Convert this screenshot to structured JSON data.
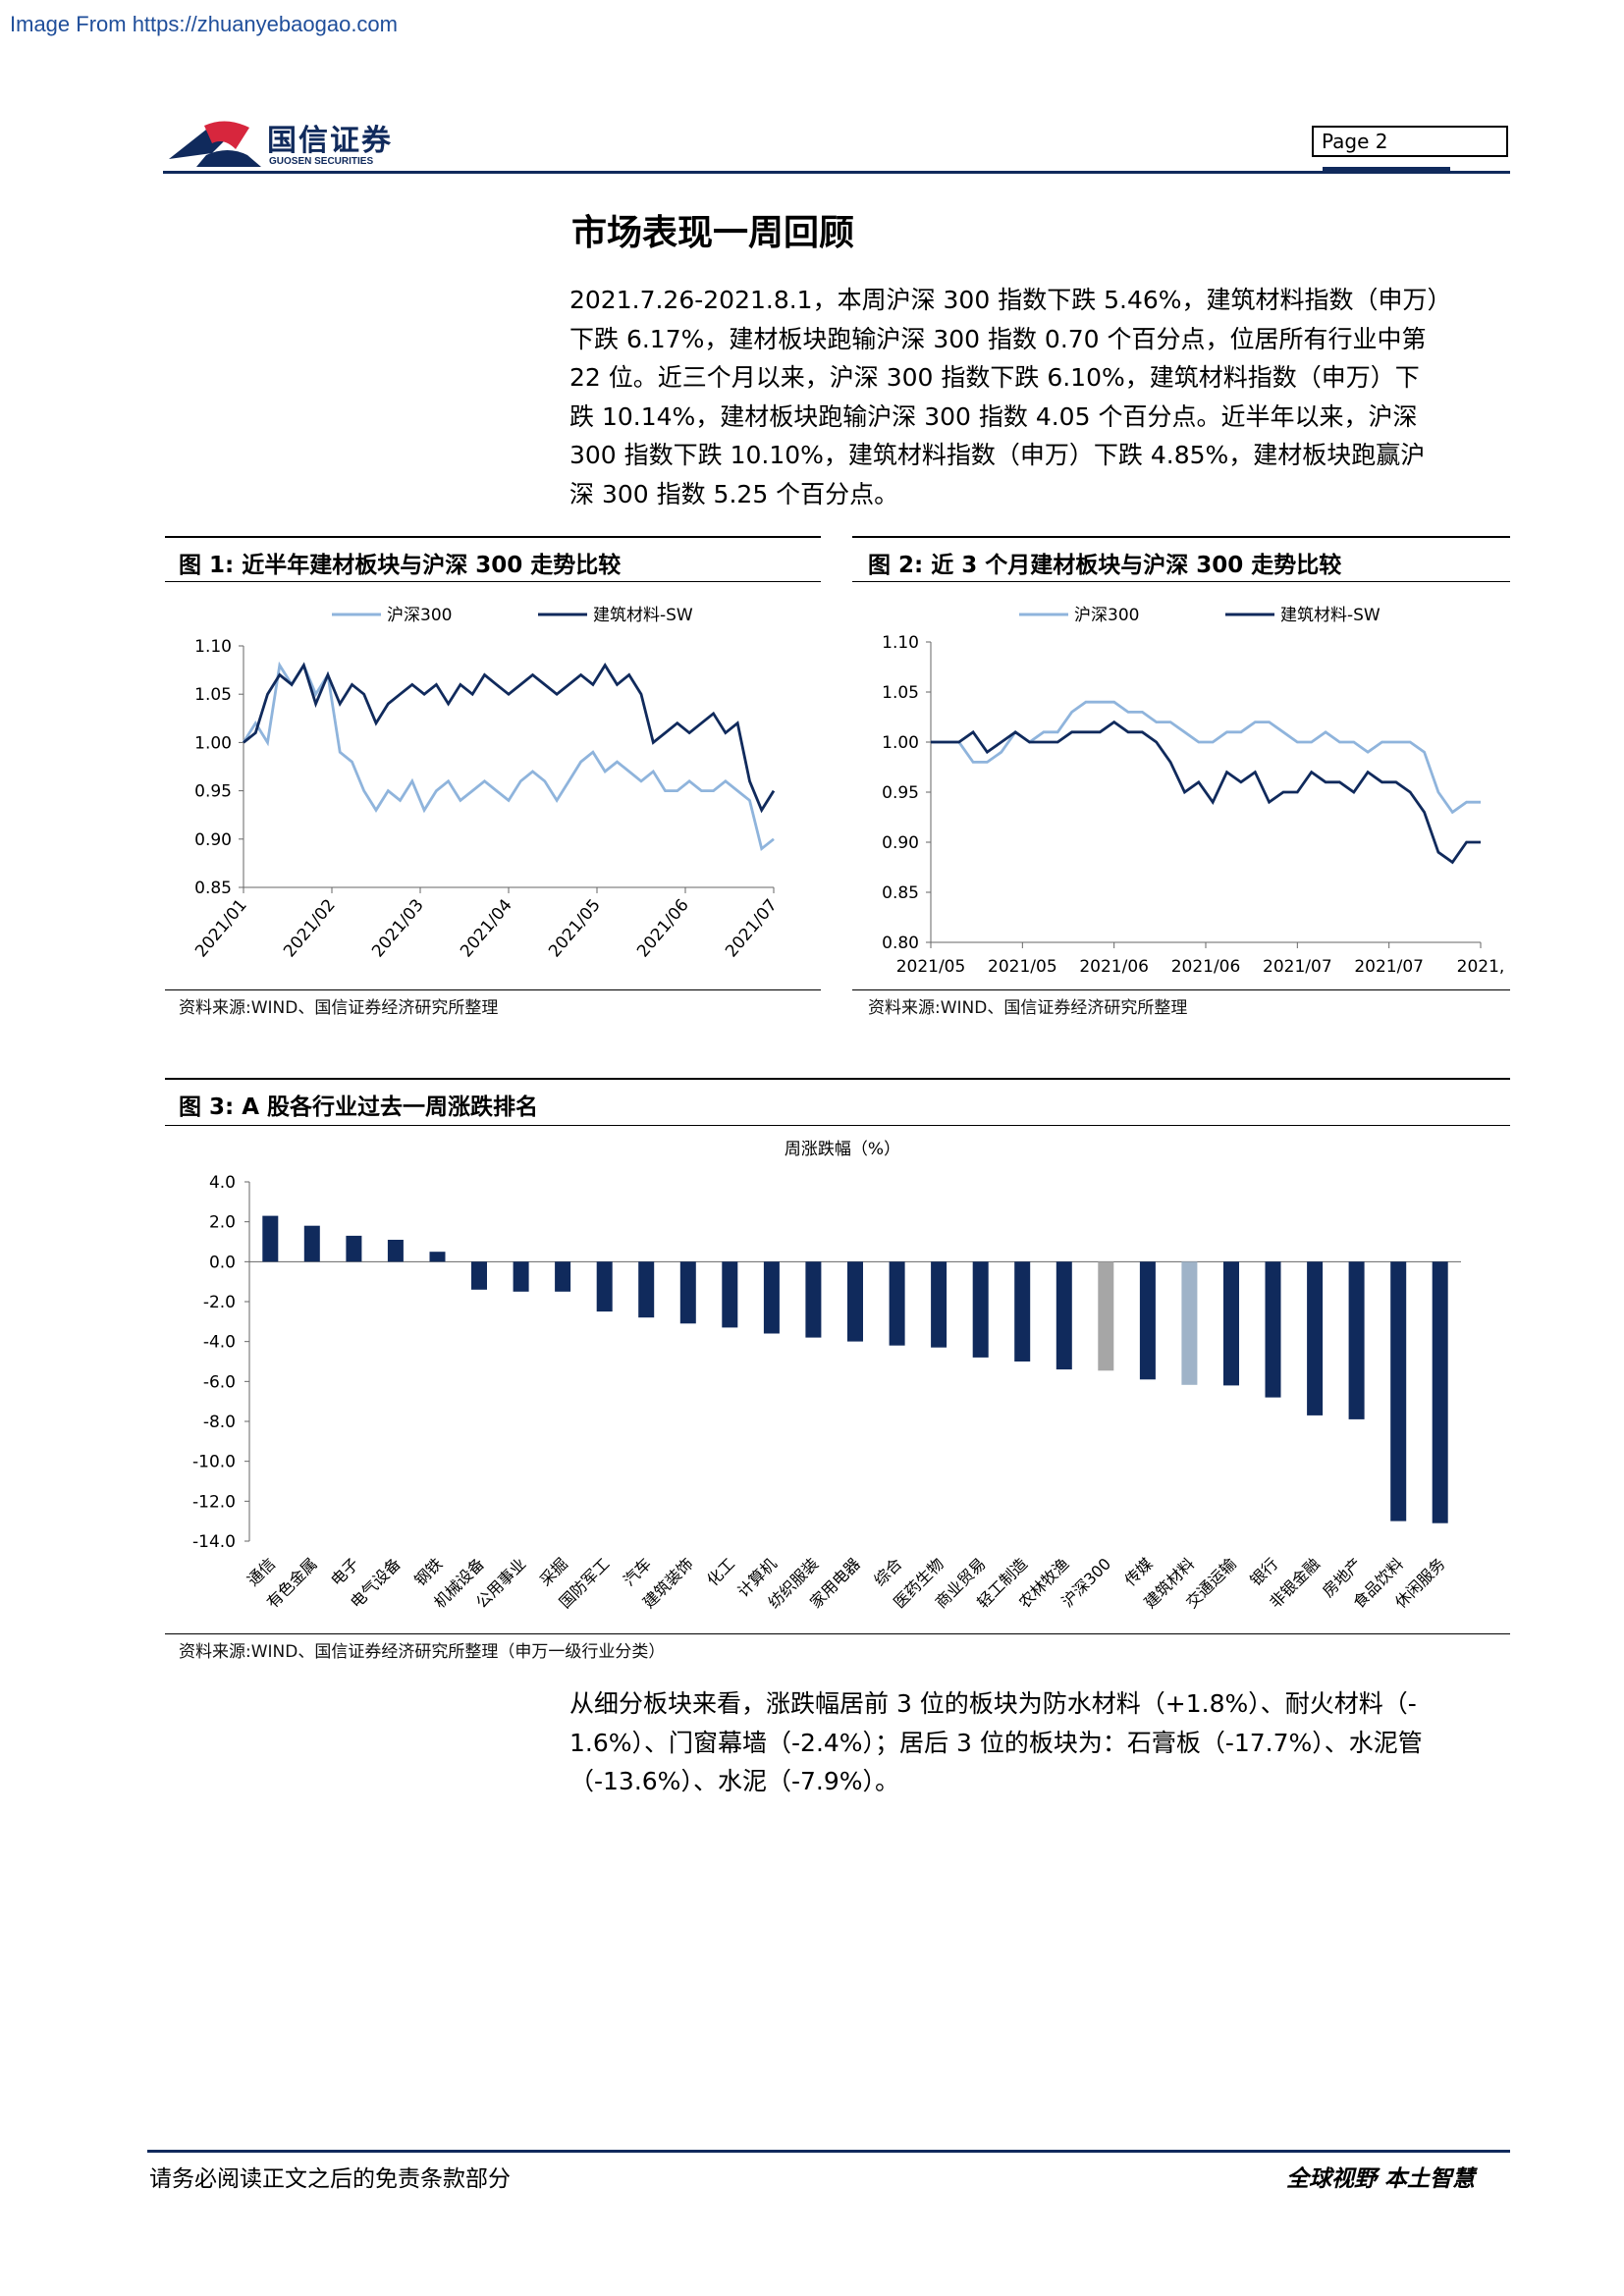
{
  "header": {
    "source_url": "Image From https://zhuanyebaogao.com",
    "logo_cn": "国信证券",
    "logo_en": "GUOSEN SECURITIES",
    "page_label": "Page 2"
  },
  "section_title": "市场表现一周回顾",
  "intro_lines": [
    "2021.7.26-2021.8.1，本周沪深 300 指数下跌 5.46%，建筑材料指数（申万）",
    "下跌 6.17%，建材板块跑输沪深 300 指数 0.70 个百分点，位居所有行业中第",
    "22 位。近三个月以来，沪深 300 指数下跌 6.10%，建筑材料指数（申万）下",
    "跌 10.14%，建材板块跑输沪深 300 指数 4.05 个百分点。近半年以来，沪深",
    "300 指数下跌 10.10%，建筑材料指数（申万）下跌 4.85%，建材板块跑赢沪",
    "深 300 指数 5.25 个百分点。"
  ],
  "figures": {
    "fig1": {
      "title": "图 1:  近半年建材板块与沪深 300 走势比较",
      "source": "资料来源:WIND、国信证券经济研究所整理"
    },
    "fig2": {
      "title": "图 2:  近 3 个月建材板块与沪深 300 走势比较",
      "source": "资料来源:WIND、国信证券经济研究所整理"
    },
    "fig3": {
      "title": "图 3:  A 股各行业过去一周涨跌排名",
      "source": "资料来源:WIND、国信证券经济研究所整理（申万一级行业分类）"
    }
  },
  "outro_lines": [
    "从细分板块来看，涨跌幅居前 3 位的板块为防水材料（+1.8%）、耐火材料（-",
    "1.6%）、门窗幕墙（-2.4%）；居后 3 位的板块为：石膏板（-17.7%）、水泥管",
    "（-13.6%）、水泥（-7.9%）。"
  ],
  "footer": {
    "left": "请务必阅读正文之后的免责条款部分",
    "right": "全球视野  本土智慧"
  },
  "colors": {
    "dark_navy": "#102a5c",
    "light_blue": "#8fb4dc",
    "gray_bar": "#a6a6a6",
    "light_steel_bar": "#9fb3c8"
  },
  "chart_data": [
    {
      "type": "line",
      "legend": [
        "沪深300",
        "建筑材料-SW"
      ],
      "x_ticks": [
        "2021/01",
        "2021/02",
        "2021/03",
        "2021/04",
        "2021/05",
        "2021/06",
        "2021/07"
      ],
      "ylim": [
        0.85,
        1.1
      ],
      "y_ticks": [
        "1.10",
        "1.05",
        "1.00",
        "0.95",
        "0.90",
        "0.85"
      ],
      "series": [
        {
          "name": "沪深300",
          "color": "#8fb4dc",
          "values": [
            1.0,
            1.02,
            1.0,
            1.08,
            1.06,
            1.08,
            1.05,
            1.07,
            0.99,
            0.98,
            0.95,
            0.93,
            0.95,
            0.94,
            0.96,
            0.93,
            0.95,
            0.96,
            0.94,
            0.95,
            0.96,
            0.95,
            0.94,
            0.96,
            0.97,
            0.96,
            0.94,
            0.96,
            0.98,
            0.99,
            0.97,
            0.98,
            0.97,
            0.96,
            0.97,
            0.95,
            0.95,
            0.96,
            0.95,
            0.95,
            0.96,
            0.95,
            0.94,
            0.89,
            0.9
          ]
        },
        {
          "name": "建筑材料-SW",
          "color": "#102a5c",
          "values": [
            1.0,
            1.01,
            1.05,
            1.07,
            1.06,
            1.08,
            1.04,
            1.07,
            1.04,
            1.06,
            1.05,
            1.02,
            1.04,
            1.05,
            1.06,
            1.05,
            1.06,
            1.04,
            1.06,
            1.05,
            1.07,
            1.06,
            1.05,
            1.06,
            1.07,
            1.06,
            1.05,
            1.06,
            1.07,
            1.06,
            1.08,
            1.06,
            1.07,
            1.05,
            1.0,
            1.01,
            1.02,
            1.01,
            1.02,
            1.03,
            1.01,
            1.02,
            0.96,
            0.93,
            0.95
          ]
        }
      ]
    },
    {
      "type": "line",
      "legend": [
        "沪深300",
        "建筑材料-SW"
      ],
      "x_ticks": [
        "2021/05",
        "2021/05",
        "2021/06",
        "2021/06",
        "2021/07",
        "2021/07",
        "2021,"
      ],
      "ylim": [
        0.8,
        1.1
      ],
      "y_ticks": [
        "1.10",
        "1.05",
        "1.00",
        "0.95",
        "0.90",
        "0.85",
        "0.80"
      ],
      "series": [
        {
          "name": "沪深300",
          "color": "#8fb4dc",
          "values": [
            1.0,
            1.0,
            1.0,
            0.98,
            0.98,
            0.99,
            1.01,
            1.0,
            1.01,
            1.01,
            1.03,
            1.04,
            1.04,
            1.04,
            1.03,
            1.03,
            1.02,
            1.02,
            1.01,
            1.0,
            1.0,
            1.01,
            1.01,
            1.02,
            1.02,
            1.01,
            1.0,
            1.0,
            1.01,
            1.0,
            1.0,
            0.99,
            1.0,
            1.0,
            1.0,
            0.99,
            0.95,
            0.93,
            0.94,
            0.94
          ]
        },
        {
          "name": "建筑材料-SW",
          "color": "#102a5c",
          "values": [
            1.0,
            1.0,
            1.0,
            1.01,
            0.99,
            1.0,
            1.01,
            1.0,
            1.0,
            1.0,
            1.01,
            1.01,
            1.01,
            1.02,
            1.01,
            1.01,
            1.0,
            0.98,
            0.95,
            0.96,
            0.94,
            0.97,
            0.96,
            0.97,
            0.94,
            0.95,
            0.95,
            0.97,
            0.96,
            0.96,
            0.95,
            0.97,
            0.96,
            0.96,
            0.95,
            0.93,
            0.89,
            0.88,
            0.9,
            0.9
          ]
        }
      ]
    },
    {
      "type": "bar",
      "title": "周涨跌幅（%）",
      "ylim": [
        -14.0,
        4.0
      ],
      "y_ticks": [
        "4.0",
        "2.0",
        "0.0",
        "-2.0",
        "-4.0",
        "-6.0",
        "-8.0",
        "-10.0",
        "-12.0",
        "-14.0"
      ],
      "categories": [
        "通信",
        "有色金属",
        "电子",
        "电气设备",
        "钢铁",
        "机械设备",
        "公用事业",
        "采掘",
        "国防军工",
        "汽车",
        "建筑装饰",
        "化工",
        "计算机",
        "纺织服装",
        "家用电器",
        "综合",
        "医药生物",
        "商业贸易",
        "轻工制造",
        "农林牧渔",
        "沪深300",
        "传媒",
        "建筑材料",
        "交通运输",
        "银行",
        "非银金融",
        "房地产",
        "食品饮料",
        "休闲服务"
      ],
      "values": [
        2.3,
        1.8,
        1.3,
        1.1,
        0.5,
        -1.4,
        -1.5,
        -1.5,
        -2.5,
        -2.8,
        -3.1,
        -3.3,
        -3.6,
        -3.8,
        -4.0,
        -4.2,
        -4.3,
        -4.8,
        -5.0,
        -5.4,
        -5.46,
        -5.9,
        -6.17,
        -6.2,
        -6.8,
        -7.7,
        -7.9,
        -13.0,
        -13.1
      ],
      "highlight": {
        "沪深300": "#a6a6a6",
        "建筑材料": "#9fb3c8"
      }
    }
  ]
}
